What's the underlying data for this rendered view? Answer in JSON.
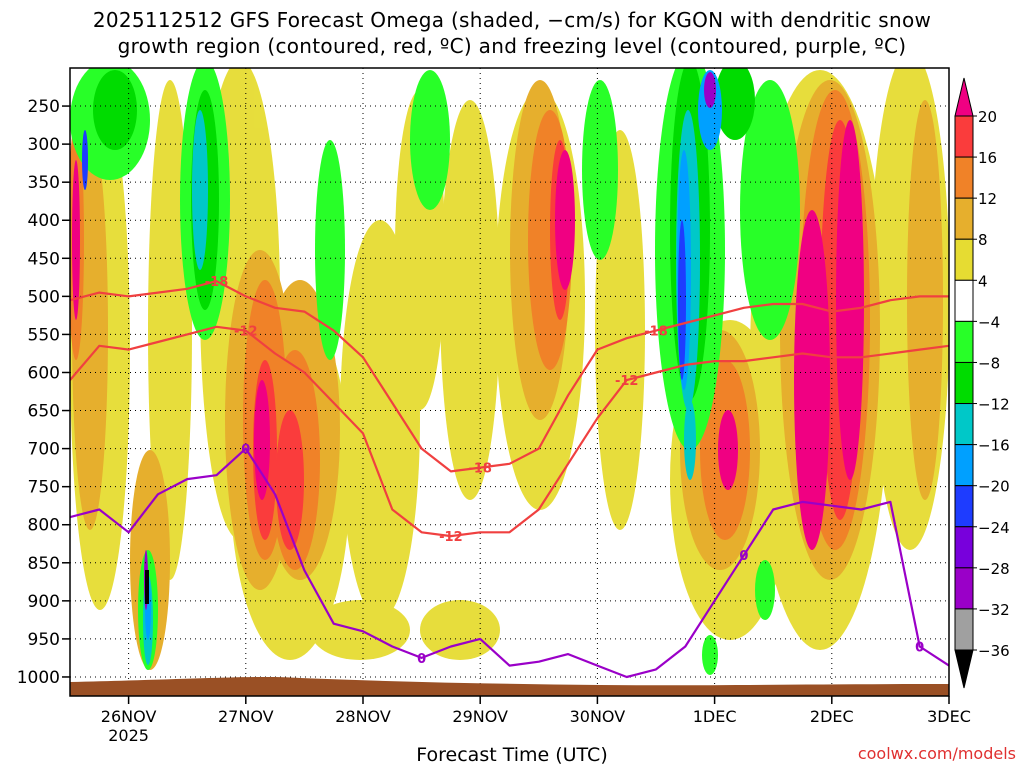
{
  "title": {
    "line1": "2025112512 GFS Forecast Omega (shaded, −cm/s) for KGON with dendritic snow",
    "line2": "growth region (contoured, red, ºC) and freezing level (contoured, purple, ºC)"
  },
  "credit": "coolwx.com/models",
  "chart_data": {
    "type": "heatmap",
    "title": "2025112512 GFS Forecast Omega (shaded, −cm/s) for KGON with dendritic snow growth region (contoured, red, ºC) and freezing level (contoured, purple, ºC)",
    "xlabel": "Forecast Time (UTC)",
    "ylabel": "",
    "x_ticks": [
      "26NOV",
      "27NOV",
      "28NOV",
      "29NOV",
      "30NOV",
      "1DEC",
      "2DEC",
      "3DEC"
    ],
    "x_year_label": "2025",
    "xlim": [
      "2025-11-25T12",
      "2025-12-03T00"
    ],
    "y_ticks": [
      250,
      300,
      350,
      400,
      450,
      500,
      550,
      600,
      650,
      700,
      750,
      800,
      850,
      900,
      950,
      1000
    ],
    "ylim": [
      1025,
      200
    ],
    "colorbar": {
      "levels": [
        -36,
        -32,
        -28,
        -24,
        -20,
        -16,
        -12,
        -8,
        -4,
        4,
        8,
        12,
        16,
        20
      ],
      "labels": [
        "20",
        "16",
        "12",
        "8",
        "4",
        "−4",
        "−8",
        "−12",
        "−16",
        "−20",
        "−24",
        "−28",
        "−32",
        "−36"
      ],
      "colors": [
        "#000000",
        "#a0a0a0",
        "#9a00c8",
        "#7800dc",
        "#1e3cff",
        "#00a0ff",
        "#00c8c8",
        "#00dc00",
        "#28ff28",
        "#ffffff",
        "#e6dc32",
        "#e6af2d",
        "#f08228",
        "#fa3c3c",
        "#f00082"
      ]
    },
    "contours": [
      {
        "name": "dendritic snow growth",
        "color": "#f04040",
        "levels": [
          -12,
          -18
        ],
        "labels": [
          "-18",
          "-12",
          "-18",
          "-12",
          "-18",
          "-12",
          "-12",
          "-18",
          "-18",
          "-12"
        ]
      },
      {
        "name": "freezing level",
        "color": "#9a00c8",
        "levels": [
          0
        ],
        "labels": [
          "0",
          "0",
          "0",
          "0"
        ]
      }
    ],
    "series": [
      {
        "contour": "-18",
        "x": [
          "2025-11-25T12",
          "2025-11-25T18",
          "2025-11-26T00",
          "2025-11-26T06",
          "2025-11-26T12",
          "2025-11-26T18",
          "2025-11-27T00",
          "2025-11-27T06",
          "2025-11-27T12",
          "2025-11-27T18",
          "2025-11-28T00",
          "2025-11-28T06",
          "2025-11-28T12",
          "2025-11-28T18",
          "2025-11-29T00",
          "2025-11-29T06",
          "2025-11-29T12",
          "2025-11-29T18",
          "2025-11-30T00",
          "2025-11-30T06",
          "2025-11-30T12",
          "2025-11-30T18",
          "2025-12-01T00",
          "2025-12-01T06",
          "2025-12-01T12",
          "2025-12-01T18",
          "2025-12-02T00",
          "2025-12-02T06",
          "2025-12-02T12",
          "2025-12-02T18",
          "2025-12-03T00"
        ],
        "y": [
          505,
          495,
          500,
          495,
          490,
          480,
          500,
          515,
          520,
          545,
          580,
          640,
          700,
          730,
          725,
          720,
          700,
          630,
          570,
          555,
          545,
          535,
          525,
          515,
          510,
          510,
          520,
          515,
          505,
          500,
          500
        ]
      },
      {
        "contour": "-12",
        "x": [
          "2025-11-25T12",
          "2025-11-25T18",
          "2025-11-26T00",
          "2025-11-26T06",
          "2025-11-26T12",
          "2025-11-26T18",
          "2025-11-27T00",
          "2025-11-27T06",
          "2025-11-27T12",
          "2025-11-27T18",
          "2025-11-28T00",
          "2025-11-28T06",
          "2025-11-28T12",
          "2025-11-28T18",
          "2025-11-29T00",
          "2025-11-29T06",
          "2025-11-29T12",
          "2025-11-29T18",
          "2025-11-30T00",
          "2025-11-30T06",
          "2025-11-30T12",
          "2025-11-30T18",
          "2025-12-01T00",
          "2025-12-01T06",
          "2025-12-01T12",
          "2025-12-01T18",
          "2025-12-02T00",
          "2025-12-02T06",
          "2025-12-02T12",
          "2025-12-02T18",
          "2025-12-03T00"
        ],
        "y": [
          610,
          565,
          570,
          560,
          550,
          540,
          545,
          575,
          600,
          640,
          680,
          780,
          810,
          815,
          810,
          810,
          780,
          720,
          660,
          610,
          600,
          590,
          585,
          585,
          580,
          575,
          580,
          580,
          575,
          570,
          565
        ]
      },
      {
        "contour": "0",
        "x": [
          "2025-11-25T12",
          "2025-11-25T18",
          "2025-11-26T00",
          "2025-11-26T06",
          "2025-11-26T12",
          "2025-11-26T18",
          "2025-11-27T00",
          "2025-11-27T06",
          "2025-11-27T12",
          "2025-11-27T18",
          "2025-11-28T00",
          "2025-11-28T06",
          "2025-11-28T12",
          "2025-11-28T18",
          "2025-11-29T00",
          "2025-11-29T06",
          "2025-11-29T12",
          "2025-11-29T18",
          "2025-11-30T00",
          "2025-11-30T06",
          "2025-11-30T12",
          "2025-11-30T18",
          "2025-12-01T00",
          "2025-12-01T06",
          "2025-12-01T12",
          "2025-12-01T18",
          "2025-12-02T00",
          "2025-12-02T06",
          "2025-12-02T12",
          "2025-12-02T18",
          "2025-12-03T00"
        ],
        "y": [
          790,
          780,
          810,
          760,
          740,
          735,
          700,
          760,
          860,
          930,
          940,
          960,
          975,
          960,
          950,
          985,
          980,
          970,
          985,
          1000,
          990,
          960,
          900,
          840,
          780,
          770,
          775,
          780,
          770,
          960,
          985
        ]
      }
    ]
  }
}
